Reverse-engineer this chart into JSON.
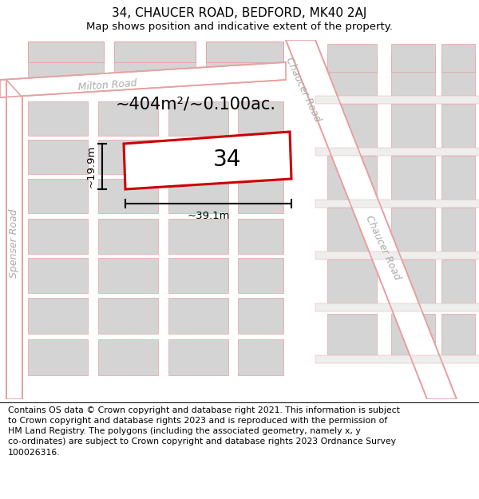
{
  "title_line1": "34, CHAUCER ROAD, BEDFORD, MK40 2AJ",
  "title_line2": "Map shows position and indicative extent of the property.",
  "footer_text": "Contains OS data © Crown copyright and database right 2021. This information is subject\nto Crown copyright and database rights 2023 and is reproduced with the permission of\nHM Land Registry. The polygons (including the associated geometry, namely x, y\nco-ordinates) are subject to Crown copyright and database rights 2023 Ordnance Survey\n100026316.",
  "area_label": "~404m²/~0.100ac.",
  "number_label": "34",
  "width_label": "~39.1m",
  "height_label": "~19.9m",
  "map_bg": "#eeeeee",
  "road_fill": "#ffffff",
  "block_fill": "#d4d4d4",
  "road_line_color": "#e8a0a0",
  "property_color": "#cc0000",
  "label_color": "#aaaaaa",
  "title_fontsize": 11,
  "subtitle_fontsize": 9.5,
  "footer_fontsize": 7.8,
  "area_fontsize": 15,
  "number_fontsize": 20,
  "dim_fontsize": 9.5,
  "street_fontsize": 9
}
